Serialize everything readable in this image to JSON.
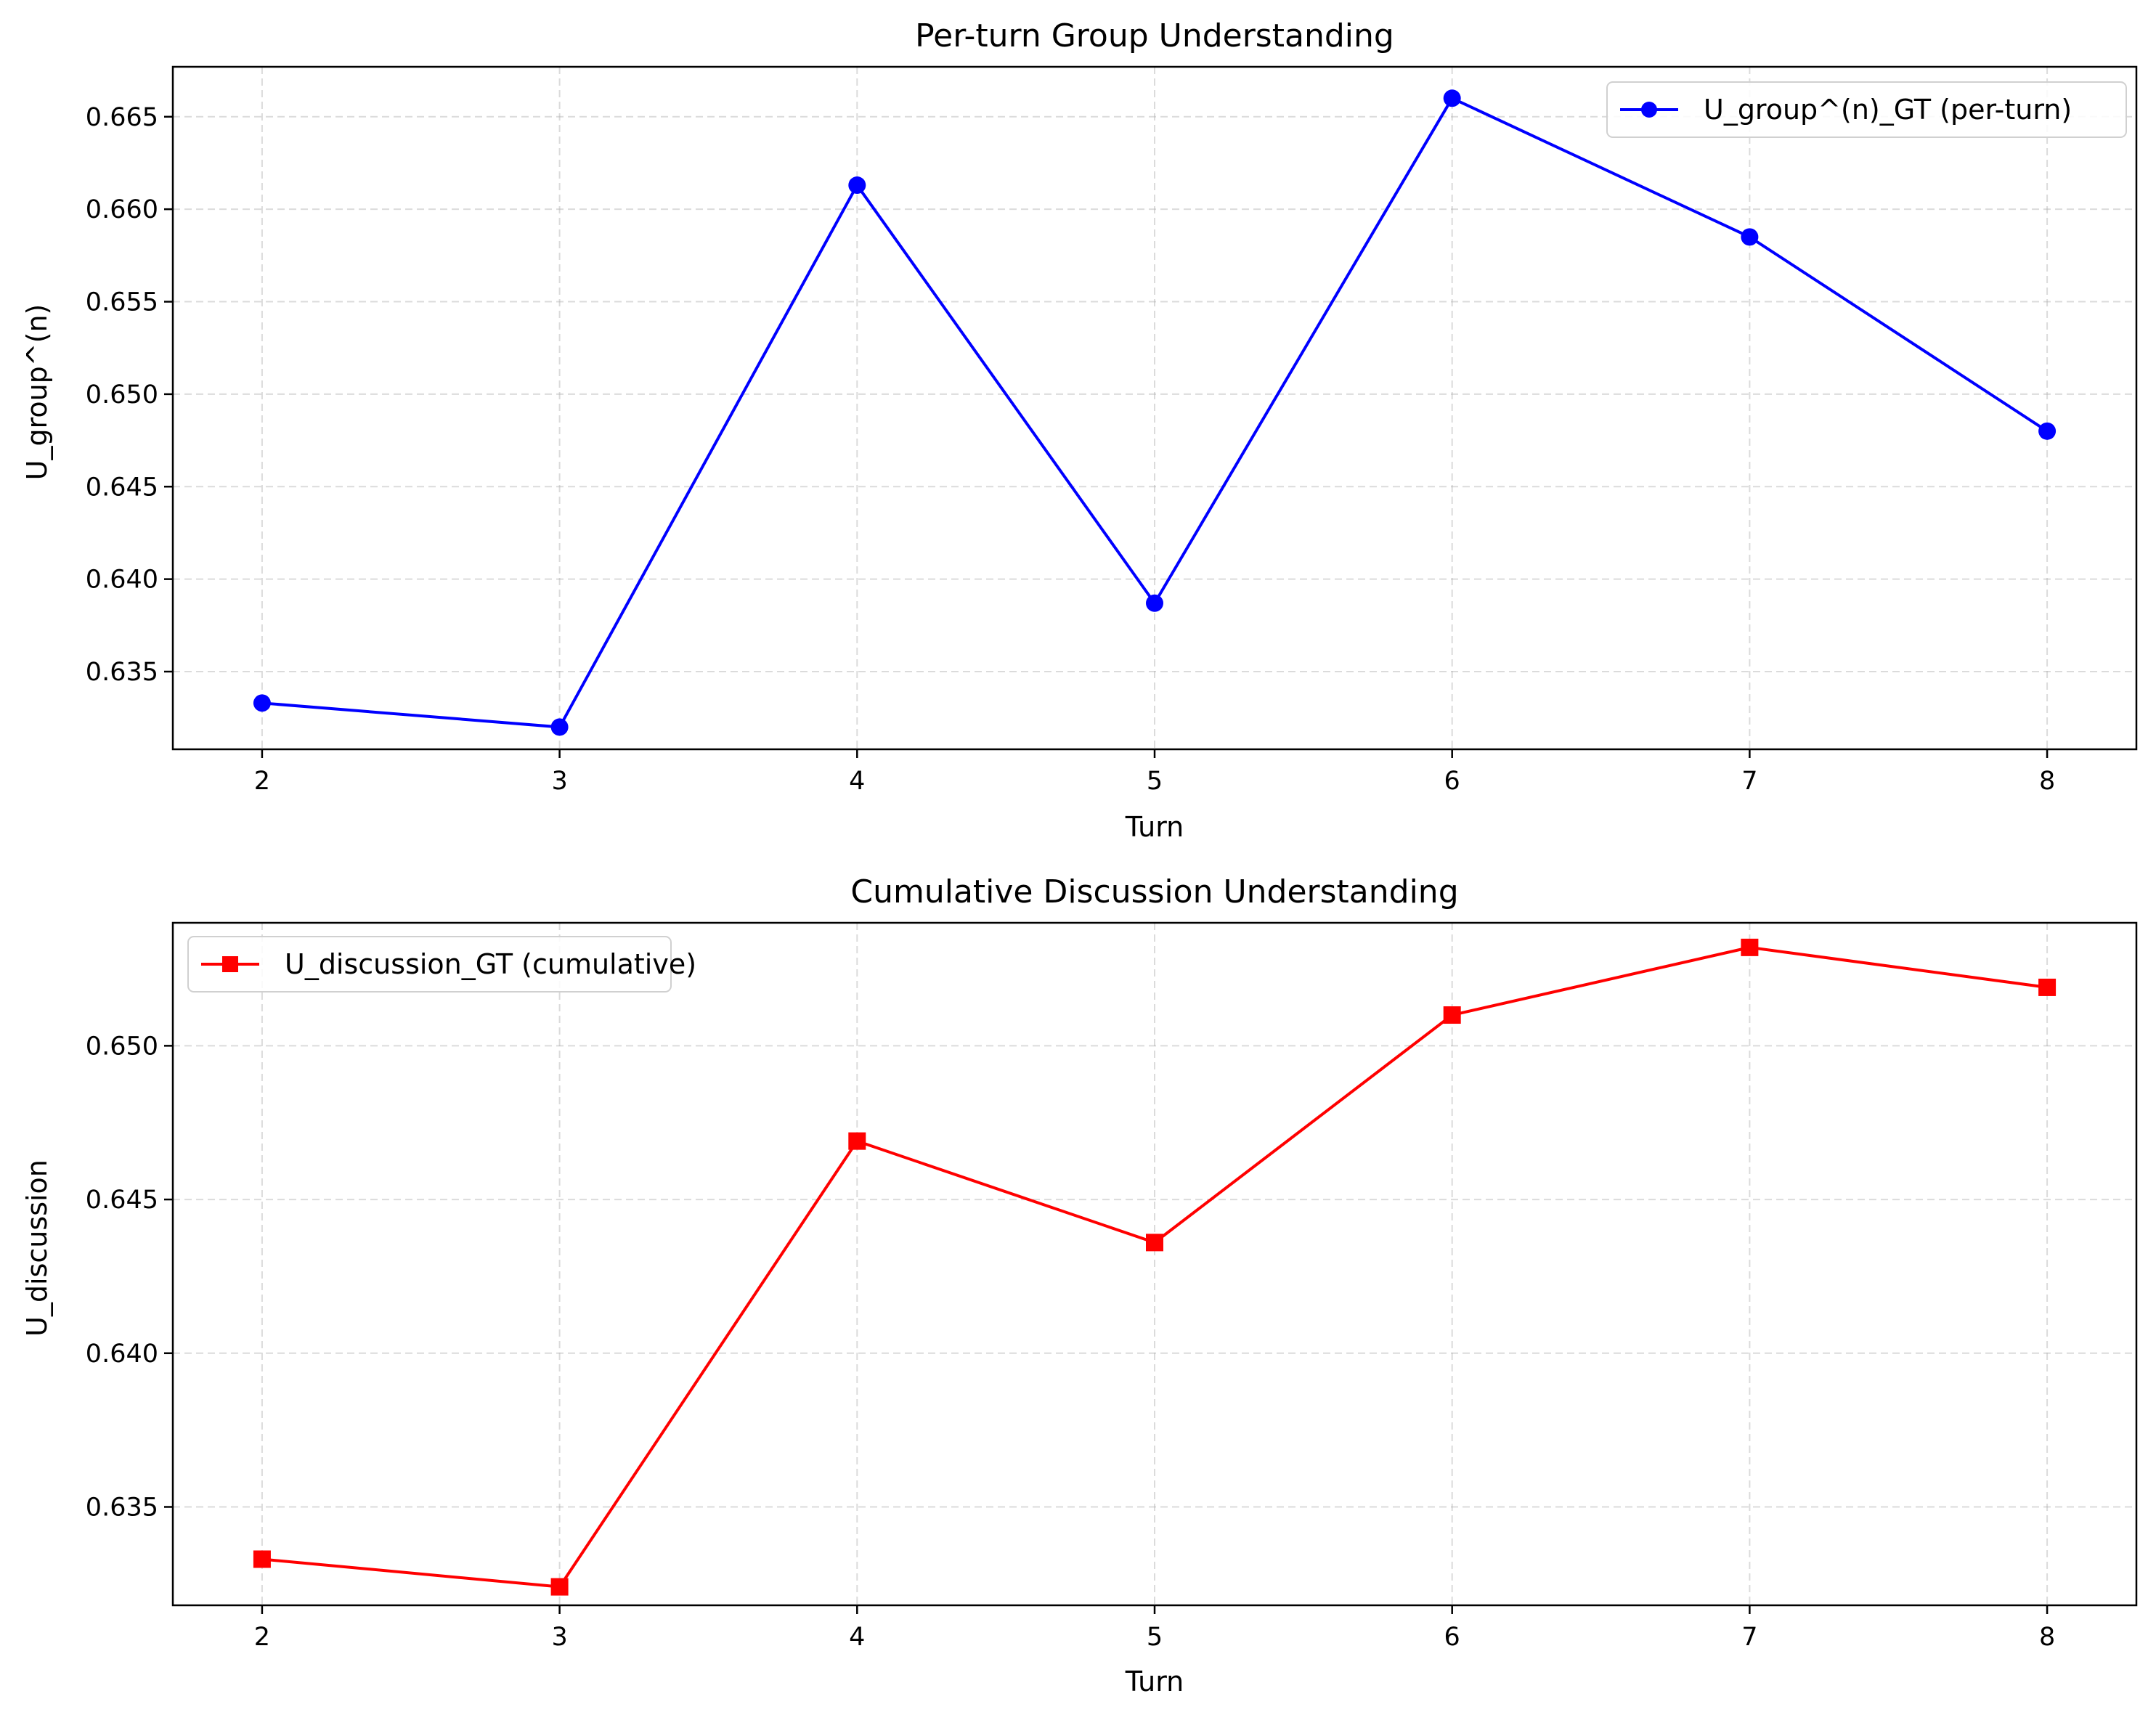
{
  "chart_data": [
    {
      "type": "line",
      "title": "Per-turn Group Understanding",
      "xlabel": "Turn",
      "ylabel": "U_group^(n)",
      "x": [
        2,
        3,
        4,
        5,
        6,
        7,
        8
      ],
      "xticks": [
        "2",
        "3",
        "4",
        "5",
        "6",
        "7",
        "8"
      ],
      "xlim": [
        1.7,
        8.3
      ],
      "ylim": [
        0.6308,
        0.6677
      ],
      "yticks": [
        "0.635",
        "0.640",
        "0.645",
        "0.650",
        "0.655",
        "0.660",
        "0.665"
      ],
      "grid": true,
      "legend": "top-right",
      "series": [
        {
          "name": "U_group^(n)_GT (per-turn)",
          "values": [
            0.6333,
            0.632,
            0.6613,
            0.6387,
            0.666,
            0.6585,
            0.648
          ],
          "color": "#0000ff",
          "marker": "circle"
        }
      ]
    },
    {
      "type": "line",
      "title": "Cumulative Discussion Understanding",
      "xlabel": "Turn",
      "ylabel": "U_discussion",
      "x": [
        2,
        3,
        4,
        5,
        6,
        7,
        8
      ],
      "xticks": [
        "2",
        "3",
        "4",
        "5",
        "6",
        "7",
        "8"
      ],
      "xlim": [
        1.7,
        8.3
      ],
      "ylim": [
        0.6318,
        0.654
      ],
      "yticks": [
        "0.635",
        "0.640",
        "0.645",
        "0.650"
      ],
      "grid": true,
      "legend": "top-left",
      "series": [
        {
          "name": "U_discussion_GT (cumulative)",
          "values": [
            0.6333,
            0.6324,
            0.6469,
            0.6436,
            0.651,
            0.6532,
            0.6519
          ],
          "color": "#ff0000",
          "marker": "square"
        }
      ]
    }
  ]
}
